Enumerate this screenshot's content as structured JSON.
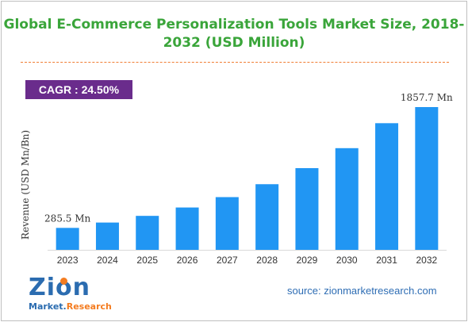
{
  "title_line1": "Global E-Commerce Personalization Tools Market Size, 2018-",
  "title_line2": "2032 (USD Million)",
  "cagr_text": "CAGR :  24.50%",
  "source_text": "source: zionmarketresearch.com",
  "logo": {
    "name": "Zion",
    "sub_part1": "Market.",
    "sub_part2": "Research"
  },
  "colors": {
    "bar": "#2196f3",
    "title": "#3aa53a",
    "cagr_bg": "#6a2c8c",
    "divider": "#f07d33",
    "source": "#2e6db4"
  },
  "chart_data": {
    "type": "bar",
    "title": "Global E-Commerce Personalization Tools Market Size, 2018-2032 (USD Million)",
    "xlabel": "",
    "ylabel": "Revenue (USD Mn/Bn)",
    "categories": [
      "2023",
      "2024",
      "2025",
      "2026",
      "2027",
      "2028",
      "2029",
      "2030",
      "2031",
      "2032"
    ],
    "values": [
      285.5,
      355,
      442,
      551,
      686,
      854,
      1063,
      1323,
      1648,
      1857.7
    ],
    "ylim": [
      0,
      1857.7
    ],
    "annotations": [
      {
        "index": 0,
        "text": "285.5 Mn"
      },
      {
        "index": 9,
        "text": "1857.7 Mn"
      }
    ],
    "grid": false,
    "legend": "none"
  }
}
